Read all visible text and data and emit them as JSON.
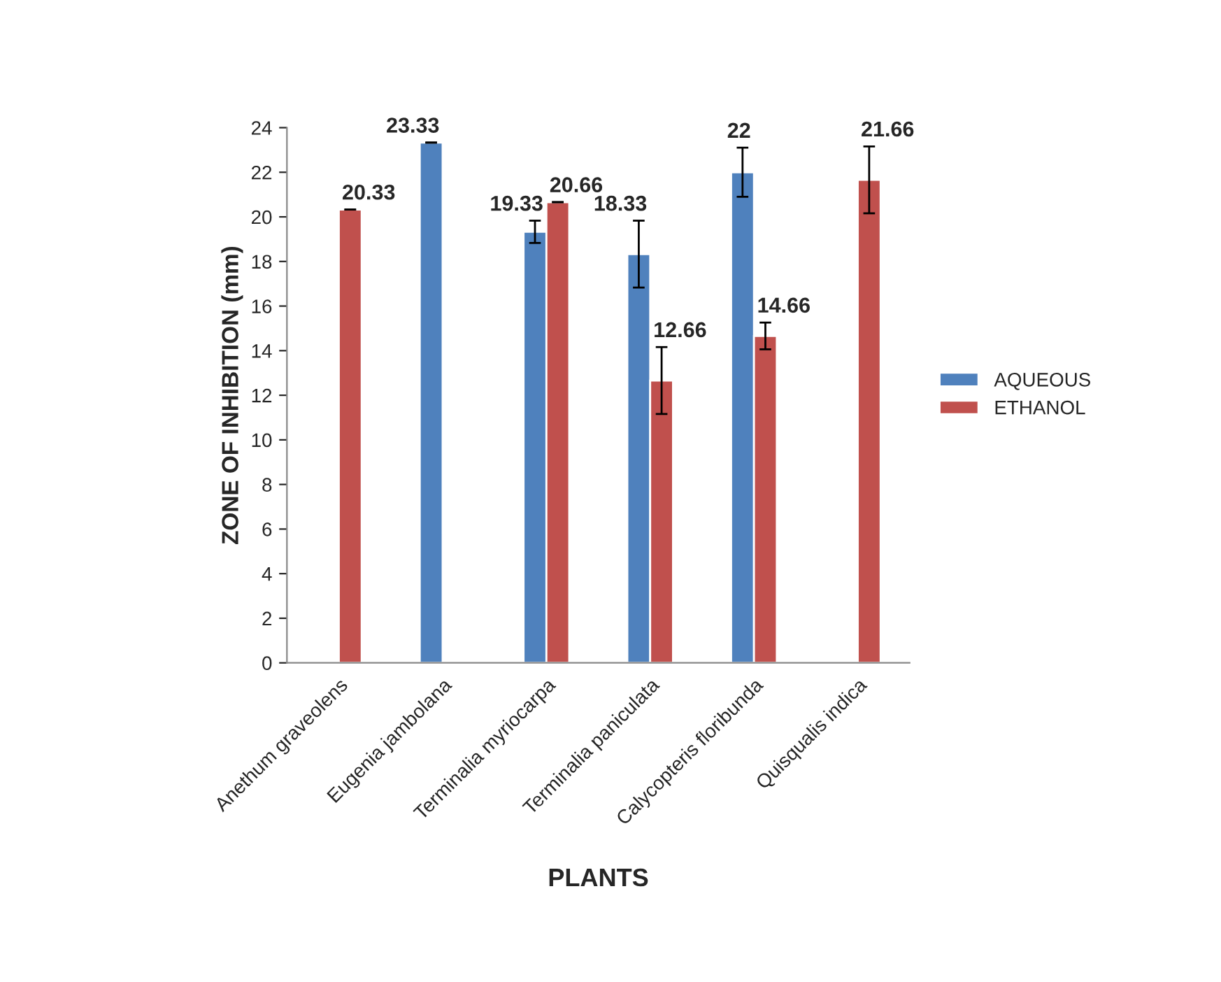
{
  "chart_data": {
    "type": "bar",
    "xlabel": "PLANTS",
    "ylabel": "ZONE OF INHIBITION (mm)",
    "categories": [
      "Anethum graveolens",
      "Eugenia jambolana",
      "Terminalia myriocarpa",
      "Terminalia paniculata",
      "Calycopteris floribunda",
      "Quisqualis indica"
    ],
    "series": [
      {
        "name": "AQUEOUS",
        "color": "#4f81bd",
        "values": [
          null,
          23.33,
          19.33,
          18.33,
          22,
          null
        ],
        "errors": [
          null,
          null,
          0.5,
          1.5,
          1.1,
          null
        ]
      },
      {
        "name": "ETHANOL",
        "color": "#c0504d",
        "values": [
          20.33,
          null,
          20.66,
          12.66,
          14.66,
          21.66
        ],
        "errors": [
          null,
          null,
          null,
          1.5,
          0.6,
          1.5
        ]
      }
    ],
    "ylim": [
      0,
      24
    ],
    "yticks": [
      0,
      2,
      4,
      6,
      8,
      10,
      12,
      14,
      16,
      18,
      20,
      22,
      24
    ],
    "data_labels": true,
    "legend": "right",
    "grid": false
  }
}
